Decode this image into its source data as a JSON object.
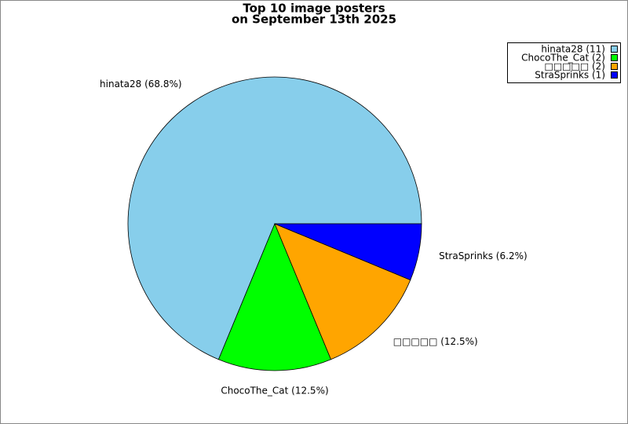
{
  "chart_data": {
    "type": "pie",
    "title": [
      "Top 10 image posters",
      "on September 13th 2025"
    ],
    "categories": [
      "hinata28",
      "ChocoThe_Cat",
      "□□□□□",
      "StraSprinks"
    ],
    "values": [
      11,
      2,
      2,
      1
    ],
    "value_labels": [
      "hinata28 (68.8%)",
      "ChocoThe_Cat (12.5%)",
      "□□□□□ (12.5%)",
      "StraSprinks (6.2%)"
    ],
    "legend_labels": [
      "hinata28 (11)",
      "ChocoThe_Cat (2)",
      "□□□□□ (2)",
      "StraSprinks (1)"
    ],
    "colors": [
      "#87ceeb",
      "#00ff00",
      "#ffa500",
      "#0000ff"
    ],
    "legend": "top-right"
  }
}
